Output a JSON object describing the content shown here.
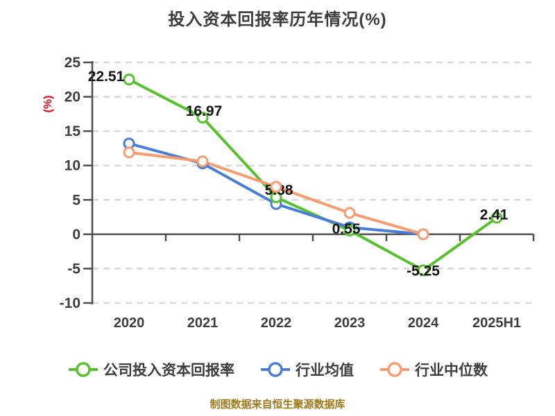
{
  "title": "投入资本回报率历年情况(%)",
  "footer": "制图数据来自恒生聚源数据库",
  "colors": {
    "green": "#57C22D",
    "blue": "#4A7DD8",
    "orange": "#F79B70",
    "grid": "#D8D8D8",
    "axis": "#4D4D4D",
    "tick_text": "#3D3D3D",
    "point_label_text": "#141414",
    "unit_red": "#E60012",
    "footer_text": "#9E7A1A"
  },
  "chart_data": {
    "type": "line",
    "title": "投入资本回报率历年情况(%)",
    "categories": [
      "2020",
      "2021",
      "2022",
      "2023",
      "2024",
      "2025H1"
    ],
    "series": [
      {
        "name": "公司投入资本回报率",
        "color": "#57C22D",
        "values": [
          22.51,
          16.97,
          5.38,
          0.55,
          -5.25,
          2.41
        ],
        "point_labels": [
          "22.51",
          "16.97",
          "5.38",
          "0.55",
          "-5.25",
          "2.41"
        ]
      },
      {
        "name": "行业均值",
        "color": "#4A7DD8",
        "values": [
          13.2,
          10.3,
          4.4,
          1.0,
          0.0,
          null
        ]
      },
      {
        "name": "行业中位数",
        "color": "#F79B70",
        "values": [
          11.9,
          10.6,
          6.9,
          3.1,
          0.0,
          null
        ]
      }
    ],
    "ylim": [
      -10,
      25
    ],
    "yticks": [
      25,
      20,
      15,
      10,
      5,
      0,
      -5,
      -10
    ],
    "ytick_labels": [
      "25",
      "20",
      "15",
      "10",
      "5",
      "0",
      "-5",
      "-10"
    ],
    "ylabel": "(%)",
    "xlabel": "",
    "grid": "horizontal-dashed",
    "legend_position": "bottom",
    "marker": "circle-white-fill"
  }
}
